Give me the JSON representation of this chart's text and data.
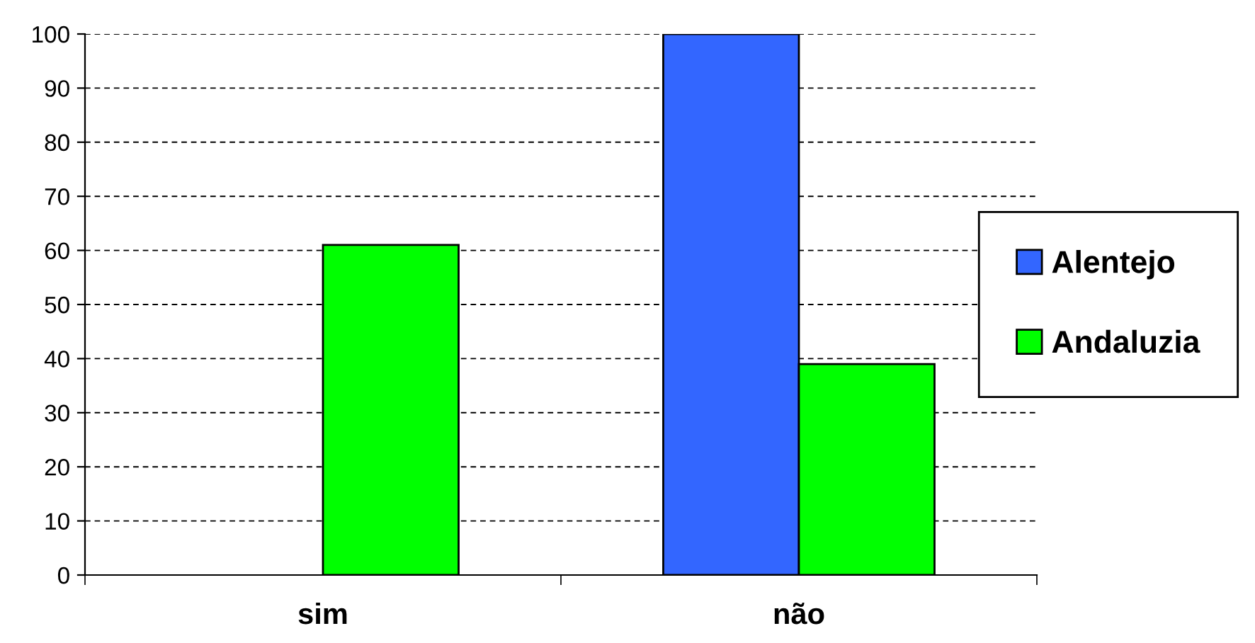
{
  "chart_data": {
    "type": "bar",
    "categories": [
      "sim",
      "não"
    ],
    "series": [
      {
        "name": "Alentejo",
        "color": "#3366ff",
        "values": [
          null,
          100
        ]
      },
      {
        "name": "Andaluzia",
        "color": "#00ff00",
        "values": [
          61,
          39
        ]
      }
    ],
    "ylim": [
      0,
      100
    ],
    "yticks": [
      0,
      10,
      20,
      30,
      40,
      50,
      60,
      70,
      80,
      90,
      100
    ],
    "grid": "y",
    "legend": "right"
  }
}
